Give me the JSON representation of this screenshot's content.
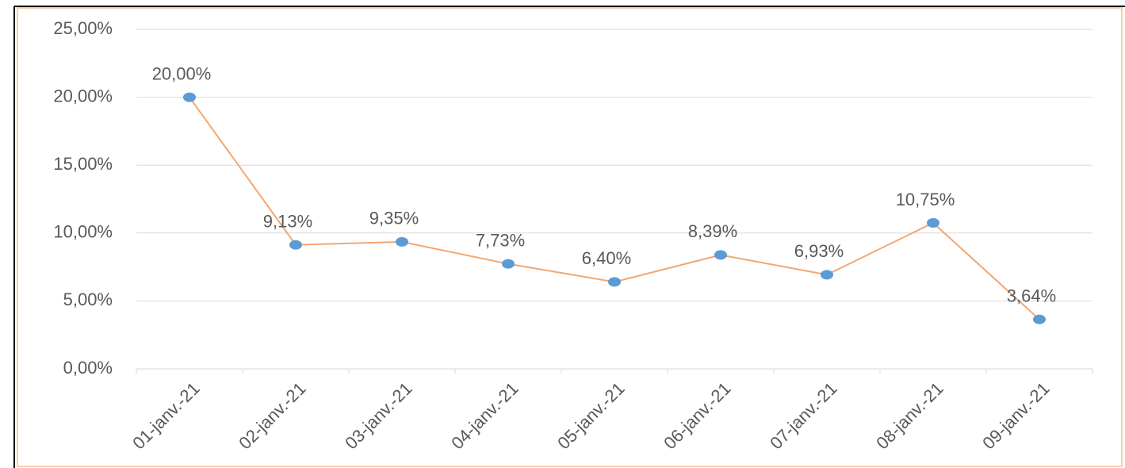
{
  "chart_data": {
    "type": "line",
    "categories": [
      "01-janv.-21",
      "02-janv.-21",
      "03-janv.-21",
      "04-janv.-21",
      "05-janv.-21",
      "06-janv.-21",
      "07-janv.-21",
      "08-janv.-21",
      "09-janv.-21"
    ],
    "values": [
      20,
      9.13,
      9.35,
      7.73,
      6.4,
      8.39,
      6.93,
      10.75,
      3.64
    ],
    "value_labels": [
      "20,00%",
      "9,13%",
      "9,35%",
      "7,73%",
      "6,40%",
      "8,39%",
      "6,93%",
      "10,75%",
      "3,64%"
    ],
    "line_color": "#f4a66e",
    "marker_color": "#5b9bd5",
    "ylim": [
      0,
      25
    ],
    "yticks": [
      {
        "value": 0,
        "label": "0,00%"
      },
      {
        "value": 5,
        "label": "5,00%"
      },
      {
        "value": 10,
        "label": "10,00%"
      },
      {
        "value": 15,
        "label": "15,00%"
      },
      {
        "value": 20,
        "label": "20,00%"
      },
      {
        "value": 25,
        "label": "25,00%"
      }
    ],
    "grid": true
  }
}
